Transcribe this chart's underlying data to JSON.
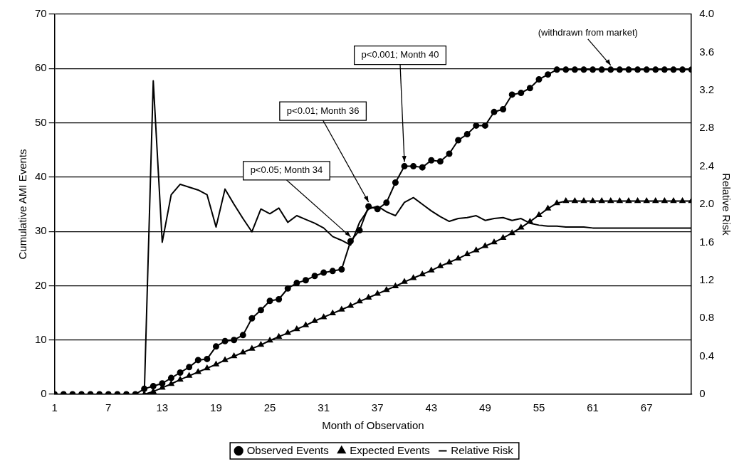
{
  "chart_data": {
    "type": "line",
    "xlabel": "Month of Observation",
    "ylabel": "Cumulative AMI Events",
    "y2label": "Relative Risk",
    "x": [
      1,
      2,
      3,
      4,
      5,
      6,
      7,
      8,
      9,
      10,
      11,
      12,
      13,
      14,
      15,
      16,
      17,
      18,
      19,
      20,
      21,
      22,
      23,
      24,
      25,
      26,
      27,
      28,
      29,
      30,
      31,
      32,
      33,
      34,
      35,
      36,
      37,
      38,
      39,
      40,
      41,
      42,
      43,
      44,
      45,
      46,
      47,
      48,
      49,
      50,
      51,
      52,
      53,
      54,
      55,
      56,
      57,
      58,
      59,
      60,
      61,
      62,
      63,
      64,
      65,
      66,
      67,
      68,
      69,
      70,
      71,
      72
    ],
    "xlim": [
      1,
      72
    ],
    "xticks": [
      1,
      7,
      13,
      19,
      25,
      31,
      37,
      43,
      49,
      55,
      61,
      67
    ],
    "ylim": [
      0,
      70
    ],
    "yticks": [
      0,
      10,
      20,
      30,
      40,
      50,
      60,
      70
    ],
    "y2lim": [
      0,
      4
    ],
    "y2ticks": [
      0,
      {
        "value": 0.4,
        "label": "0.4"
      },
      {
        "value": 0.8,
        "label": "0.8"
      },
      {
        "value": 1.2,
        "label": "1.2"
      },
      {
        "value": 1.6,
        "label": "1.6"
      },
      {
        "value": 2,
        "label": "2.0"
      },
      {
        "value": 2.4,
        "label": "2.4"
      },
      {
        "value": 2.8,
        "label": "2.8"
      },
      {
        "value": 3.2,
        "label": "3.2"
      },
      {
        "value": 3.6,
        "label": "3.6"
      },
      {
        "value": 4,
        "label": "4.0"
      }
    ],
    "grid": "y",
    "legend": "bottom",
    "series": [
      {
        "name": "Observed Events",
        "color": "#000000",
        "marker": "circle",
        "values": [
          0,
          0,
          0,
          0,
          0,
          0,
          0,
          0,
          0,
          0,
          1,
          1.5,
          2,
          3,
          4,
          5,
          6.3,
          6.5,
          8.8,
          9.8,
          10,
          10.9,
          14,
          15.5,
          17.2,
          17.5,
          19.5,
          20.5,
          21,
          21.8,
          22.4,
          22.7,
          23,
          28.2,
          30.2,
          34.6,
          34.1,
          35.3,
          39,
          42,
          42,
          41.8,
          43.1,
          42.9,
          44.3,
          46.8,
          47.9,
          49.5,
          49.5,
          52,
          52.5,
          55.2,
          55.5,
          56.4,
          58,
          58.9,
          59.8,
          59.8,
          59.8,
          59.8,
          59.8,
          59.8,
          59.8,
          59.8,
          59.8,
          59.8,
          59.8,
          59.8,
          59.8,
          59.8,
          59.8,
          59.8
        ]
      },
      {
        "name": "Expected Events",
        "color": "#000000",
        "marker": "triangle",
        "values": [
          null,
          null,
          null,
          null,
          null,
          null,
          null,
          null,
          null,
          null,
          0,
          0.5,
          1.2,
          1.9,
          2.7,
          3.4,
          4.1,
          4.8,
          5.5,
          6.3,
          7,
          7.7,
          8.4,
          9.1,
          9.9,
          10.6,
          11.3,
          12,
          12.7,
          13.5,
          14.2,
          14.9,
          15.6,
          16.3,
          17.1,
          17.8,
          18.5,
          19.2,
          19.9,
          20.7,
          21.4,
          22.1,
          22.8,
          23.6,
          24.3,
          25,
          25.8,
          26.5,
          27.3,
          28,
          28.8,
          29.7,
          30.7,
          31.8,
          33,
          34.2,
          35.2,
          35.6,
          35.6,
          35.6,
          35.6,
          35.6,
          35.6,
          35.6,
          35.6,
          35.6,
          35.6,
          35.6,
          35.6,
          35.6,
          35.6,
          35.6
        ]
      },
      {
        "name": "Relative Risk",
        "color": "#000000",
        "marker": "none",
        "axis": "y2",
        "values": [
          0,
          0,
          0,
          0,
          0,
          0,
          0,
          0,
          0,
          0,
          0,
          3.3,
          1.6,
          2.1,
          2.21,
          2.18,
          2.15,
          2.1,
          1.76,
          2.16,
          2,
          1.85,
          1.71,
          1.95,
          1.9,
          1.96,
          1.81,
          1.88,
          1.84,
          1.8,
          1.75,
          1.66,
          1.62,
          1.57,
          1.81,
          1.95,
          1.98,
          1.92,
          1.88,
          2.02,
          2.07,
          2,
          1.93,
          1.87,
          1.82,
          1.85,
          1.86,
          1.88,
          1.83,
          1.85,
          1.86,
          1.83,
          1.85,
          1.8,
          1.78,
          1.77,
          1.77,
          1.76,
          1.76,
          1.76,
          1.75,
          1.75,
          1.75,
          1.75,
          1.75,
          1.75,
          1.75,
          1.75,
          1.75,
          1.75,
          1.75,
          1.75
        ]
      }
    ],
    "annotations": [
      {
        "text": "p<0.05; Month 34",
        "x": 34,
        "y": 28.2
      },
      {
        "text": "p<0.01; Month 36",
        "x": 36,
        "y": 34.6
      },
      {
        "text": "p<0.001; Month 40",
        "x": 40,
        "y": 42
      },
      {
        "text": "(withdrawn from market)",
        "x": 63,
        "y": 59.8
      }
    ]
  }
}
